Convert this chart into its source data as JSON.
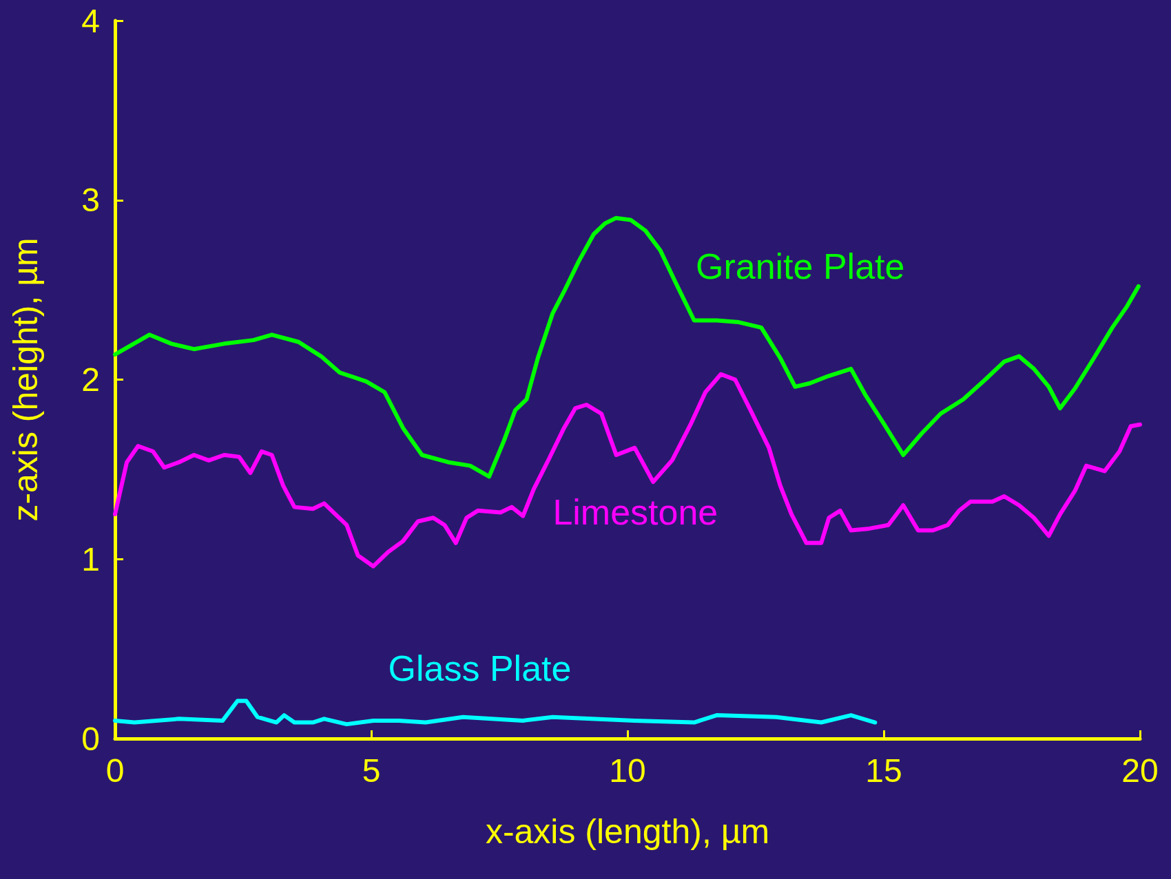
{
  "chart_data": {
    "type": "line",
    "xlabel": "x-axis (length), µm",
    "ylabel": "z-axis (height), µm",
    "xlim": [
      0,
      20
    ],
    "xticks": [
      0,
      5,
      10,
      15,
      20
    ],
    "ylim": [
      0,
      4
    ],
    "yticks": [
      0,
      1,
      2,
      3,
      4
    ],
    "grid": false,
    "legend": false,
    "marker": "none",
    "line_style": "solid",
    "series": [
      {
        "name": "Granite Plate",
        "color": "#00ff00",
        "x": [
          0,
          0.67,
          1.1,
          1.54,
          2.13,
          2.7,
          3.06,
          3.58,
          4.02,
          4.38,
          4.9,
          5.26,
          5.62,
          5.99,
          6.5,
          6.93,
          7.3,
          7.59,
          7.81,
          8.03,
          8.25,
          8.54,
          8.76,
          9.05,
          9.34,
          9.56,
          9.77,
          10.06,
          10.35,
          10.64,
          10.94,
          11.3,
          11.74,
          12.17,
          12.61,
          12.98,
          13.27,
          13.56,
          13.92,
          14.36,
          14.65,
          15.01,
          15.38,
          15.74,
          16.11,
          16.55,
          16.98,
          17.35,
          17.64,
          17.93,
          18.22,
          18.44,
          18.73,
          19.1,
          19.46,
          19.75,
          19.97
        ],
        "values": [
          2.14,
          2.25,
          2.2,
          2.17,
          2.2,
          2.22,
          2.25,
          2.21,
          2.13,
          2.04,
          1.99,
          1.93,
          1.73,
          1.58,
          1.54,
          1.52,
          1.46,
          1.66,
          1.83,
          1.89,
          2.12,
          2.37,
          2.49,
          2.66,
          2.81,
          2.87,
          2.9,
          2.89,
          2.83,
          2.72,
          2.54,
          2.33,
          2.33,
          2.32,
          2.29,
          2.12,
          1.96,
          1.98,
          2.02,
          2.06,
          1.91,
          1.75,
          1.58,
          1.7,
          1.81,
          1.89,
          2.0,
          2.1,
          2.13,
          2.06,
          1.96,
          1.84,
          1.95,
          2.12,
          2.29,
          2.41,
          2.52
        ]
      },
      {
        "name": "Limestone",
        "color": "#ff00ff",
        "x": [
          0,
          0.23,
          0.45,
          0.74,
          0.96,
          1.25,
          1.54,
          1.83,
          2.13,
          2.42,
          2.64,
          2.86,
          3.06,
          3.28,
          3.5,
          3.86,
          4.08,
          4.3,
          4.52,
          4.74,
          5.04,
          5.33,
          5.62,
          5.91,
          6.21,
          6.43,
          6.65,
          6.86,
          7.08,
          7.52,
          7.74,
          7.96,
          8.17,
          8.47,
          8.76,
          8.98,
          9.2,
          9.49,
          9.78,
          10.14,
          10.5,
          10.87,
          11.23,
          11.52,
          11.82,
          12.1,
          12.4,
          12.76,
          12.98,
          13.2,
          13.49,
          13.78,
          13.93,
          14.15,
          14.36,
          14.72,
          15.09,
          15.38,
          15.67,
          15.96,
          16.25,
          16.47,
          16.69,
          17.12,
          17.35,
          17.64,
          17.93,
          18.22,
          18.44,
          18.73,
          18.95,
          19.31,
          19.6,
          19.82,
          20
        ],
        "values": [
          1.25,
          1.54,
          1.63,
          1.6,
          1.51,
          1.54,
          1.58,
          1.55,
          1.58,
          1.57,
          1.48,
          1.6,
          1.58,
          1.41,
          1.29,
          1.28,
          1.31,
          1.25,
          1.19,
          1.02,
          0.96,
          1.04,
          1.1,
          1.21,
          1.23,
          1.19,
          1.09,
          1.23,
          1.27,
          1.26,
          1.29,
          1.24,
          1.39,
          1.56,
          1.73,
          1.84,
          1.86,
          1.81,
          1.58,
          1.62,
          1.43,
          1.55,
          1.75,
          1.93,
          2.03,
          2.0,
          1.83,
          1.62,
          1.41,
          1.25,
          1.09,
          1.09,
          1.23,
          1.27,
          1.16,
          1.17,
          1.19,
          1.3,
          1.16,
          1.16,
          1.19,
          1.27,
          1.32,
          1.32,
          1.35,
          1.3,
          1.23,
          1.13,
          1.25,
          1.38,
          1.52,
          1.49,
          1.6,
          1.74,
          1.75
        ]
      },
      {
        "name": "Glass Plate",
        "color": "#00ffff",
        "x": [
          0,
          0.38,
          1.25,
          2.1,
          2.39,
          2.56,
          2.78,
          3.15,
          3.3,
          3.5,
          3.86,
          4.08,
          4.52,
          5.04,
          5.54,
          6.06,
          6.79,
          7.96,
          8.54,
          10.14,
          11.3,
          11.74,
          12.9,
          13.78,
          14.36,
          14.83
        ],
        "values": [
          0.1,
          0.09,
          0.11,
          0.1,
          0.21,
          0.21,
          0.12,
          0.09,
          0.13,
          0.09,
          0.09,
          0.11,
          0.08,
          0.1,
          0.1,
          0.09,
          0.12,
          0.1,
          0.12,
          0.1,
          0.09,
          0.13,
          0.12,
          0.09,
          0.13,
          0.09
        ]
      }
    ]
  }
}
